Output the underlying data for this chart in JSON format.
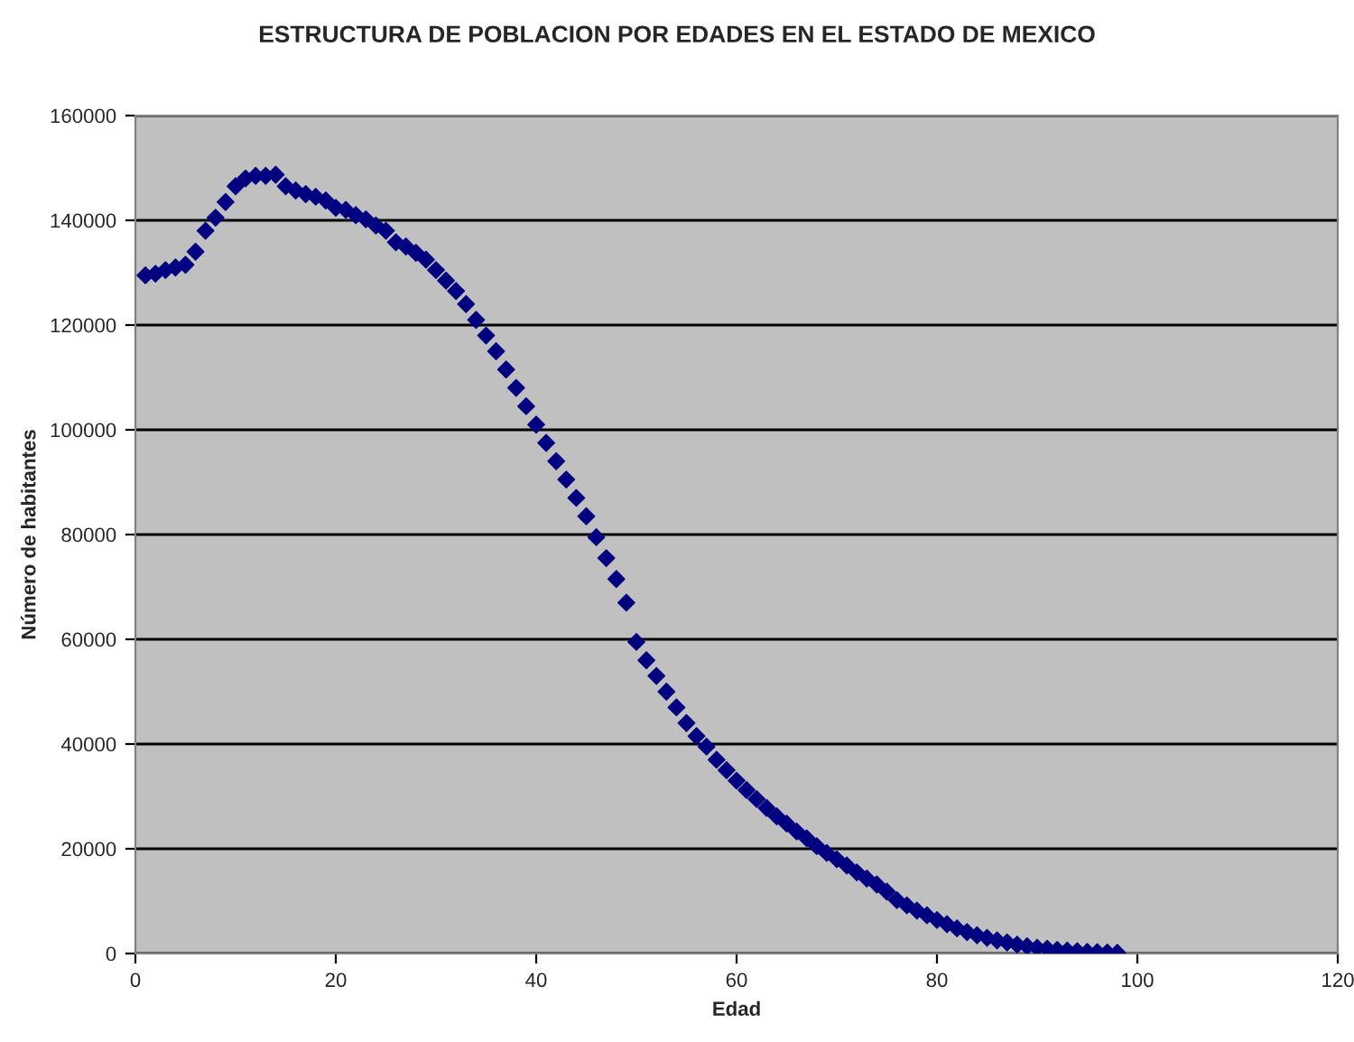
{
  "chart_data": {
    "type": "scatter",
    "title": "ESTRUCTURA DE POBLACION POR EDADES EN EL ESTADO DE MEXICO",
    "xlabel": "Edad",
    "ylabel": "Número de habitantes",
    "x": [
      1,
      2,
      3,
      4,
      5,
      6,
      7,
      8,
      9,
      10,
      11,
      12,
      13,
      14,
      15,
      16,
      17,
      18,
      19,
      20,
      21,
      22,
      23,
      24,
      25,
      26,
      27,
      28,
      29,
      30,
      31,
      32,
      33,
      34,
      35,
      36,
      37,
      38,
      39,
      40,
      41,
      42,
      43,
      44,
      45,
      46,
      47,
      48,
      49,
      50,
      51,
      52,
      53,
      54,
      55,
      56,
      57,
      58,
      59,
      60,
      61,
      62,
      63,
      64,
      65,
      66,
      67,
      68,
      69,
      70,
      71,
      72,
      73,
      74,
      75,
      76,
      77,
      78,
      79,
      80,
      81,
      82,
      83,
      84,
      85,
      86,
      87,
      88,
      89,
      90,
      91,
      92,
      93,
      94,
      95,
      96,
      97,
      98
    ],
    "series": [
      {
        "color": "#000080",
        "values": [
          129500,
          129800,
          130500,
          131000,
          131500,
          134000,
          138000,
          140500,
          143500,
          146500,
          148000,
          148500,
          148500,
          148700,
          146500,
          145700,
          145000,
          144500,
          143800,
          142400,
          142000,
          141000,
          140200,
          139000,
          138000,
          135800,
          135000,
          133800,
          132500,
          130500,
          128500,
          126500,
          124000,
          121000,
          118000,
          115000,
          111500,
          108000,
          104500,
          101000,
          97500,
          94000,
          90500,
          87000,
          83500,
          79500,
          75500,
          71500,
          67000,
          59500,
          56000,
          53000,
          50000,
          47000,
          44000,
          41500,
          39500,
          37000,
          35000,
          33000,
          31200,
          29500,
          27800,
          26200,
          24800,
          23300,
          22000,
          20500,
          19200,
          18000,
          16800,
          15500,
          14300,
          13200,
          11800,
          10200,
          9200,
          8200,
          7300,
          6400,
          5600,
          4800,
          4100,
          3500,
          3000,
          2500,
          2100,
          1700,
          1400,
          1100,
          900,
          700,
          550,
          420,
          320,
          250,
          200,
          150
        ]
      }
    ],
    "xlim": [
      0,
      120
    ],
    "xticks": [
      0,
      20,
      40,
      60,
      80,
      100,
      120
    ],
    "ylim": [
      0,
      160000
    ],
    "yticks": [
      0,
      20000,
      40000,
      60000,
      80000,
      100000,
      120000,
      140000,
      160000
    ],
    "grid": "y",
    "marker": "diamond",
    "legend": false
  }
}
